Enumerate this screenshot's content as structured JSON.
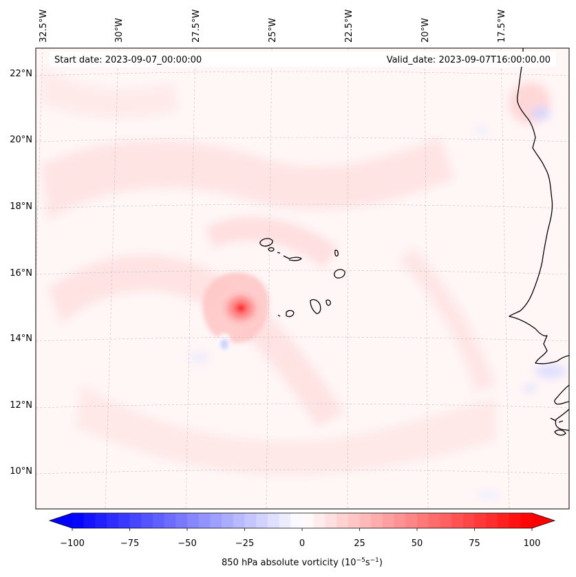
{
  "header": {
    "start_date": "Start date: 2023-09-07_00:00:00",
    "valid_date": "Valid_date: 2023-09-07T16:00:00.00"
  },
  "map": {
    "lon_labels": [
      "32.5°W",
      "30°W",
      "27.5°W",
      "25°W",
      "22.5°W",
      "20°W",
      "17.5°W"
    ],
    "lat_labels": [
      "22°N",
      "20°N",
      "18°N",
      "16°N",
      "14°N",
      "12°N",
      "10°N"
    ],
    "extent": {
      "lon_min": -33,
      "lon_max": -16.3,
      "lat_min": 8.9,
      "lat_max": 22.7
    },
    "gridlines": "on",
    "vortex_center": {
      "lon": -25.9,
      "lat": 14.9
    }
  },
  "colorbar": {
    "ticks": [
      "−100",
      "−75",
      "−50",
      "−25",
      "0",
      "25",
      "50",
      "75",
      "100"
    ],
    "label_main": "850 hPa absolute vorticity (10",
    "label_exp1": "−5",
    "label_mid": "s",
    "label_exp2": "−1",
    "label_end": ")",
    "vmin": -100,
    "vmax": 100,
    "colormap": "bwr",
    "extend": "both"
  },
  "colors": {
    "background_tint": "#fff5f5",
    "coast": "#000000",
    "grid": "#bbbbbb",
    "neg_extreme": "#0000ff",
    "pos_extreme": "#ff0000"
  }
}
